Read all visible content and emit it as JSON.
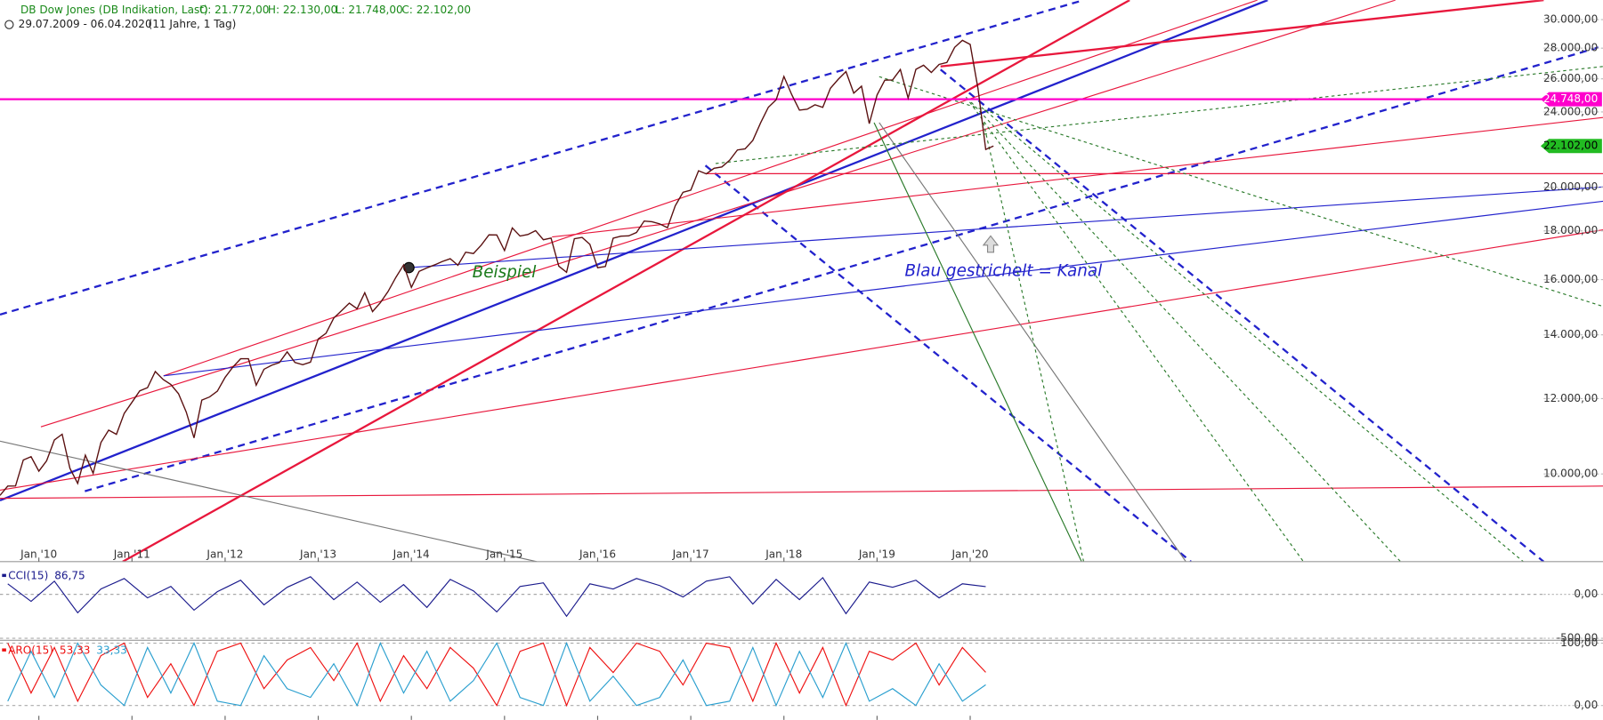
{
  "chart_data": [
    {
      "type": "line",
      "title": "DB Dow Jones (DB Indikation, Last)",
      "quote": [
        "O: 21.772,00",
        "H: 22.130,00",
        "L: 21.748,00",
        "C: 22.102,00"
      ],
      "subtitle": "29.07.2009 - 06.04.2020",
      "period": "(11 Jahre, 1 Tag)",
      "log_scale": true,
      "ylim": [
        8090,
        31450
      ],
      "yticks": [
        {
          "value": 10000,
          "label": "10.000,00"
        },
        {
          "value": 12000,
          "label": "12.000,00"
        },
        {
          "value": 14000,
          "label": "14.000,00"
        },
        {
          "value": 16000,
          "label": "16.000,00"
        },
        {
          "value": 18000,
          "label": "18.000,00"
        },
        {
          "value": 20000,
          "label": "20.000,00"
        },
        {
          "value": 24000,
          "label": "24.000,00"
        },
        {
          "value": 26000,
          "label": "26.000,00"
        },
        {
          "value": 28000,
          "label": "28.000,00"
        },
        {
          "value": 30000,
          "label": "30.000,00"
        }
      ],
      "xticks": [
        {
          "value": "2010-01",
          "label": "Jan '10"
        },
        {
          "value": "2011-01",
          "label": "Jan '11"
        },
        {
          "value": "2012-01",
          "label": "Jan '12"
        },
        {
          "value": "2013-01",
          "label": "Jan '13"
        },
        {
          "value": "2014-01",
          "label": "Jan '14"
        },
        {
          "value": "2015-01",
          "label": "Jan '15"
        },
        {
          "value": "2016-01",
          "label": "Jan '16"
        },
        {
          "value": "2017-01",
          "label": "Jan '17"
        },
        {
          "value": "2018-01",
          "label": "Jan '18"
        },
        {
          "value": "2019-01",
          "label": "Jan '19"
        },
        {
          "value": "2020-01",
          "label": "Jan '20"
        }
      ],
      "x": [
        "2009-08",
        "2009-09",
        "2009-10",
        "2009-11",
        "2009-12",
        "2010-01",
        "2010-02",
        "2010-03",
        "2010-04",
        "2010-05",
        "2010-06",
        "2010-07",
        "2010-08",
        "2010-09",
        "2010-10",
        "2010-11",
        "2010-12",
        "2011-01",
        "2011-02",
        "2011-03",
        "2011-04",
        "2011-05",
        "2011-06",
        "2011-07",
        "2011-08",
        "2011-09",
        "2011-10",
        "2011-11",
        "2011-12",
        "2012-01",
        "2012-02",
        "2012-03",
        "2012-04",
        "2012-05",
        "2012-06",
        "2012-07",
        "2012-08",
        "2012-09",
        "2012-10",
        "2012-11",
        "2012-12",
        "2013-01",
        "2013-02",
        "2013-03",
        "2013-04",
        "2013-05",
        "2013-06",
        "2013-07",
        "2013-08",
        "2013-09",
        "2013-10",
        "2013-11",
        "2013-12",
        "2014-01",
        "2014-02",
        "2014-03",
        "2014-04",
        "2014-05",
        "2014-06",
        "2014-07",
        "2014-08",
        "2014-09",
        "2014-10",
        "2014-11",
        "2014-12",
        "2015-01",
        "2015-02",
        "2015-03",
        "2015-04",
        "2015-05",
        "2015-06",
        "2015-07",
        "2015-08",
        "2015-09",
        "2015-10",
        "2015-11",
        "2015-12",
        "2016-01",
        "2016-02",
        "2016-03",
        "2016-04",
        "2016-05",
        "2016-06",
        "2016-07",
        "2016-08",
        "2016-09",
        "2016-10",
        "2016-11",
        "2016-12",
        "2017-01",
        "2017-02",
        "2017-03",
        "2017-04",
        "2017-05",
        "2017-06",
        "2017-07",
        "2017-08",
        "2017-09",
        "2017-10",
        "2017-11",
        "2017-12",
        "2018-01",
        "2018-02",
        "2018-03",
        "2018-04",
        "2018-05",
        "2018-06",
        "2018-07",
        "2018-08",
        "2018-09",
        "2018-10",
        "2018-11",
        "2018-12",
        "2019-01",
        "2019-02",
        "2019-03",
        "2019-04",
        "2019-05",
        "2019-06",
        "2019-07",
        "2019-08",
        "2019-09",
        "2019-10",
        "2019-11",
        "2019-12",
        "2020-01",
        "2020-02",
        "2020-03",
        "2020-04"
      ],
      "series": [
        {
          "color": "#5a1010",
          "values": [
            9496,
            9712,
            9713,
            10345,
            10428,
            10067,
            10325,
            10857,
            11009,
            10137,
            9774,
            10466,
            10015,
            10788,
            11118,
            11006,
            11578,
            11892,
            12226,
            12320,
            12811,
            12570,
            12414,
            12143,
            11614,
            10913,
            11955,
            12046,
            12218,
            12633,
            12952,
            13212,
            13214,
            12393,
            12880,
            13009,
            13091,
            13437,
            13096,
            13026,
            13104,
            13861,
            14054,
            14579,
            14840,
            15116,
            14910,
            15500,
            14810,
            15130,
            15546,
            16086,
            16577,
            15699,
            16322,
            16458,
            16581,
            16717,
            16827,
            16563,
            17098,
            17043,
            17391,
            17828,
            17823,
            17165,
            18133,
            17776,
            17841,
            18011,
            17620,
            17690,
            16528,
            16285,
            17664,
            17720,
            17425,
            16466,
            16517,
            17685,
            17774,
            17787,
            17930,
            18432,
            18401,
            18308,
            18142,
            19124,
            19763,
            19864,
            20812,
            20663,
            20941,
            21009,
            21350,
            21891,
            21948,
            22405,
            23377,
            24272,
            24719,
            26149,
            25029,
            24103,
            24163,
            24416,
            24271,
            25415,
            25965,
            26458,
            25116,
            25538,
            23327,
            24999,
            25916,
            25929,
            26593,
            24815,
            26600,
            26864,
            26403,
            26917,
            27046,
            28051,
            28538,
            28256,
            25409,
            21917,
            22102
          ]
        }
      ],
      "price_markers": [
        {
          "value": 24748,
          "label": "24.748,00",
          "color": "#ff00cc"
        },
        {
          "value": 22102,
          "label": "22.102,00",
          "color": "#22bb22"
        }
      ],
      "annotations": [
        {
          "text": "Beispiel",
          "color": "#1a7a1a"
        },
        {
          "text": "Blau gestrichelt = Kanal",
          "color": "#2222cc"
        }
      ]
    },
    {
      "type": "line",
      "ylim": [
        -523,
        314
      ],
      "yticks": [
        {
          "value": 0,
          "label": "0,00"
        },
        {
          "value": -500,
          "label": "-500,00"
        }
      ],
      "x": [
        "2009-09",
        "2009-12",
        "2010-03",
        "2010-06",
        "2010-09",
        "2010-12",
        "2011-03",
        "2011-06",
        "2011-09",
        "2011-12",
        "2012-03",
        "2012-06",
        "2012-09",
        "2012-12",
        "2013-03",
        "2013-06",
        "2013-09",
        "2013-12",
        "2014-03",
        "2014-06",
        "2014-09",
        "2014-12",
        "2015-03",
        "2015-06",
        "2015-09",
        "2015-12",
        "2016-03",
        "2016-06",
        "2016-09",
        "2016-12",
        "2017-03",
        "2017-06",
        "2017-09",
        "2017-12",
        "2018-03",
        "2018-06",
        "2018-09",
        "2018-12",
        "2019-03",
        "2019-06",
        "2019-09",
        "2019-12",
        "2020-03"
      ],
      "series": [
        {
          "name": "CCI(15)",
          "last_label": "86,75",
          "color": "#1a1a8c",
          "values": [
            120,
            -80,
            150,
            -210,
            60,
            180,
            -40,
            90,
            -180,
            30,
            160,
            -120,
            80,
            200,
            -60,
            140,
            -90,
            110,
            -150,
            170,
            40,
            -200,
            90,
            130,
            -250,
            120,
            60,
            180,
            100,
            -30,
            150,
            200,
            -110,
            170,
            -60,
            190,
            -220,
            140,
            80,
            160,
            -40,
            120,
            86.75
          ]
        }
      ]
    },
    {
      "type": "line",
      "ylim": [
        -23,
        103
      ],
      "yticks": [
        {
          "value": 0,
          "label": "0,00"
        },
        {
          "value": 100,
          "label": "100,00"
        }
      ],
      "x": [
        "2009-09",
        "2009-12",
        "2010-03",
        "2010-06",
        "2010-09",
        "2010-12",
        "2011-03",
        "2011-06",
        "2011-09",
        "2011-12",
        "2012-03",
        "2012-06",
        "2012-09",
        "2012-12",
        "2013-03",
        "2013-06",
        "2013-09",
        "2013-12",
        "2014-03",
        "2014-06",
        "2014-09",
        "2014-12",
        "2015-03",
        "2015-06",
        "2015-09",
        "2015-12",
        "2016-03",
        "2016-06",
        "2016-09",
        "2016-12",
        "2017-03",
        "2017-06",
        "2017-09",
        "2017-12",
        "2018-03",
        "2018-06",
        "2018-09",
        "2018-12",
        "2019-03",
        "2019-06",
        "2019-09",
        "2019-12",
        "2020-03"
      ],
      "series": [
        {
          "name": "ARO(15)",
          "last_label": "53,33",
          "color": "#ee1111",
          "values": [
            100,
            20,
            93,
            7,
            80,
            100,
            13,
            67,
            0,
            87,
            100,
            27,
            73,
            93,
            40,
            100,
            7,
            80,
            27,
            93,
            60,
            0,
            87,
            100,
            0,
            93,
            53,
            100,
            87,
            33,
            100,
            93,
            7,
            100,
            20,
            93,
            0,
            87,
            73,
            100,
            33,
            93,
            53.33
          ]
        },
        {
          "last_label": "33,33",
          "color": "#2a9fcf",
          "values": [
            7,
            87,
            13,
            100,
            33,
            0,
            93,
            20,
            100,
            7,
            0,
            80,
            27,
            13,
            67,
            0,
            100,
            20,
            87,
            7,
            40,
            100,
            13,
            0,
            100,
            7,
            47,
            0,
            13,
            73,
            0,
            7,
            93,
            0,
            87,
            13,
            100,
            7,
            27,
            0,
            67,
            7,
            33.33
          ]
        }
      ]
    }
  ]
}
